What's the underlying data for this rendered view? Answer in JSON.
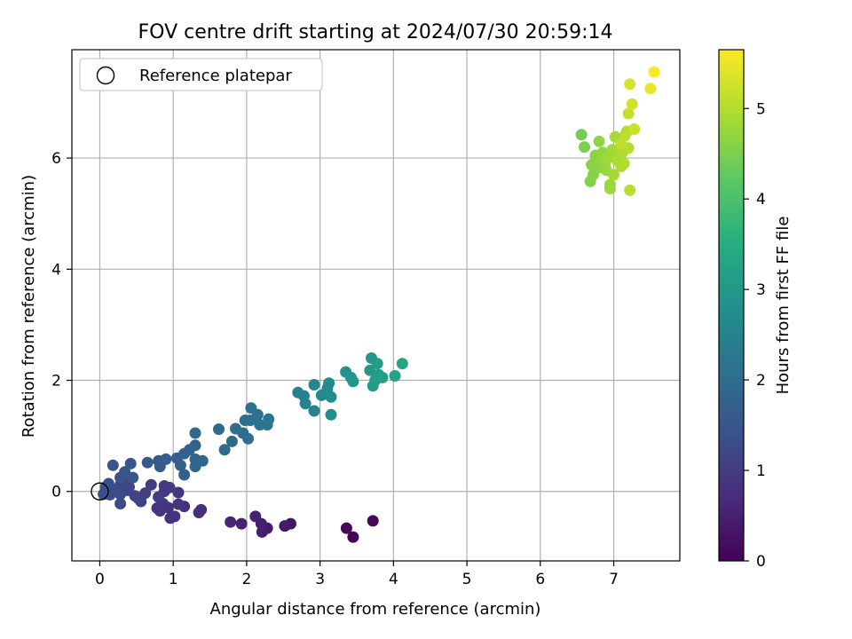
{
  "chart_data": {
    "type": "scatter",
    "title": "FOV centre drift starting at 2024/07/30 20:59:14",
    "xlabel": "Angular distance from reference (arcmin)",
    "ylabel": "Rotation from reference (arcmin)",
    "xlim": [
      -0.38,
      7.9
    ],
    "ylim": [
      -1.25,
      7.95
    ],
    "xticks": [
      0,
      1,
      2,
      3,
      4,
      5,
      6,
      7
    ],
    "yticks": [
      0,
      2,
      4,
      6
    ],
    "grid": true,
    "legend": {
      "placement": "upper-left",
      "entries": [
        "Reference platepar"
      ]
    },
    "reference_point": {
      "x": 0,
      "y": 0
    },
    "colorbar": {
      "label": "Hours from first FF file",
      "colormap": "viridis",
      "range": [
        0,
        5.65
      ],
      "ticks": [
        0,
        1,
        2,
        3,
        4,
        5
      ]
    },
    "series": [
      {
        "points": [
          [
            3.45,
            -0.82,
            0.05
          ],
          [
            3.36,
            -0.66,
            0.1
          ],
          [
            3.72,
            -0.53,
            0.15
          ],
          [
            2.6,
            -0.58,
            0.35
          ],
          [
            2.52,
            -0.62,
            0.38
          ],
          [
            2.28,
            -0.66,
            0.42
          ],
          [
            2.21,
            -0.73,
            0.45
          ],
          [
            2.2,
            -0.58,
            0.48
          ],
          [
            2.12,
            -0.45,
            0.52
          ],
          [
            1.93,
            -0.58,
            0.55
          ],
          [
            1.78,
            -0.55,
            0.6
          ],
          [
            1.38,
            -0.33,
            0.7
          ],
          [
            1.35,
            -0.38,
            0.72
          ],
          [
            1.15,
            -0.27,
            0.75
          ],
          [
            1.02,
            -0.45,
            0.78
          ],
          [
            0.96,
            -0.48,
            0.8
          ],
          [
            0.93,
            -0.29,
            0.82
          ],
          [
            0.82,
            -0.35,
            0.84
          ],
          [
            1.07,
            -0.23,
            0.86
          ],
          [
            0.86,
            -0.22,
            0.88
          ],
          [
            0.78,
            -0.3,
            0.9
          ],
          [
            1.07,
            -0.02,
            0.92
          ],
          [
            0.88,
            0.0,
            0.94
          ],
          [
            0.95,
            0.07,
            0.96
          ],
          [
            0.88,
            0.1,
            0.98
          ],
          [
            0.8,
            -0.1,
            1.0
          ],
          [
            0.7,
            0.12,
            1.02
          ],
          [
            0.62,
            -0.03,
            1.05
          ],
          [
            0.56,
            -0.18,
            1.08
          ],
          [
            0.52,
            -0.12,
            1.1
          ],
          [
            0.48,
            -0.08,
            1.12
          ],
          [
            0.38,
            0.02,
            1.15
          ],
          [
            0.4,
            0.08,
            1.18
          ],
          [
            0.35,
            0.22,
            1.2
          ],
          [
            0.28,
            0.12,
            1.22
          ],
          [
            0.28,
            -0.05,
            1.25
          ],
          [
            0.28,
            -0.22,
            1.28
          ],
          [
            0.2,
            0.03,
            1.3
          ],
          [
            0.14,
            -0.06,
            1.32
          ],
          [
            0.12,
            0.14,
            1.35
          ],
          [
            0.05,
            -0.05,
            1.38
          ],
          [
            0.08,
            0.08,
            1.4
          ],
          [
            0.18,
            0.47,
            1.42
          ],
          [
            0.28,
            0.25,
            1.45
          ],
          [
            0.42,
            0.5,
            1.48
          ],
          [
            0.34,
            0.35,
            1.5
          ],
          [
            0.45,
            0.25,
            1.52
          ],
          [
            0.65,
            0.52,
            1.55
          ],
          [
            0.8,
            0.55,
            1.58
          ],
          [
            0.82,
            0.45,
            1.6
          ],
          [
            0.9,
            0.58,
            1.62
          ],
          [
            1.05,
            0.6,
            1.65
          ],
          [
            1.1,
            0.47,
            1.68
          ],
          [
            1.15,
            0.68,
            1.7
          ],
          [
            1.15,
            0.3,
            1.72
          ],
          [
            1.22,
            0.75,
            1.75
          ],
          [
            1.3,
            0.83,
            1.78
          ],
          [
            1.3,
            0.45,
            1.8
          ],
          [
            1.3,
            0.58,
            1.82
          ],
          [
            1.4,
            0.55,
            1.85
          ],
          [
            1.3,
            1.05,
            1.88
          ],
          [
            1.62,
            1.12,
            1.9
          ],
          [
            1.7,
            0.75,
            1.92
          ],
          [
            1.8,
            0.9,
            1.95
          ],
          [
            1.85,
            1.13,
            1.98
          ],
          [
            1.95,
            1.05,
            2.0
          ],
          [
            2.02,
            0.95,
            2.02
          ],
          [
            2.05,
            1.28,
            2.05
          ],
          [
            1.98,
            1.28,
            2.08
          ],
          [
            2.06,
            1.5,
            2.1
          ],
          [
            2.15,
            1.38,
            2.12
          ],
          [
            2.18,
            1.2,
            2.15
          ],
          [
            2.28,
            1.2,
            2.18
          ],
          [
            2.3,
            1.3,
            2.2
          ],
          [
            2.7,
            1.78,
            2.4
          ],
          [
            2.78,
            1.72,
            2.45
          ],
          [
            2.8,
            1.58,
            2.5
          ],
          [
            2.92,
            1.45,
            2.55
          ],
          [
            2.92,
            1.92,
            2.6
          ],
          [
            3.02,
            1.73,
            2.65
          ],
          [
            3.1,
            1.85,
            2.7
          ],
          [
            3.12,
            1.95,
            2.72
          ],
          [
            3.15,
            1.7,
            2.75
          ],
          [
            3.15,
            1.38,
            2.78
          ],
          [
            3.35,
            2.15,
            2.85
          ],
          [
            3.42,
            2.05,
            2.9
          ],
          [
            3.45,
            1.98,
            2.95
          ],
          [
            3.7,
            2.4,
            3.0
          ],
          [
            3.68,
            2.18,
            3.05
          ],
          [
            3.72,
            1.9,
            3.08
          ],
          [
            3.75,
            2.0,
            3.1
          ],
          [
            3.78,
            2.3,
            3.12
          ],
          [
            3.8,
            2.1,
            3.15
          ],
          [
            3.85,
            2.05,
            3.18
          ],
          [
            4.02,
            2.08,
            3.25
          ],
          [
            4.12,
            2.3,
            3.3
          ],
          [
            6.56,
            6.42,
            4.4
          ],
          [
            6.6,
            6.2,
            4.5
          ],
          [
            6.68,
            5.58,
            4.55
          ],
          [
            6.72,
            5.7,
            4.58
          ],
          [
            6.7,
            5.88,
            4.6
          ],
          [
            6.75,
            6.05,
            4.62
          ],
          [
            6.78,
            5.82,
            4.65
          ],
          [
            6.8,
            6.3,
            4.68
          ],
          [
            6.82,
            5.95,
            4.7
          ],
          [
            6.85,
            6.1,
            4.72
          ],
          [
            6.88,
            5.9,
            4.74
          ],
          [
            6.9,
            5.78,
            4.76
          ],
          [
            6.95,
            5.45,
            4.78
          ],
          [
            6.95,
            5.52,
            4.8
          ],
          [
            6.92,
            6.0,
            4.82
          ],
          [
            6.98,
            6.15,
            4.84
          ],
          [
            7.0,
            5.7,
            4.86
          ],
          [
            7.02,
            6.38,
            4.88
          ],
          [
            7.05,
            5.95,
            4.9
          ],
          [
            7.08,
            6.05,
            4.92
          ],
          [
            7.1,
            5.85,
            4.94
          ],
          [
            7.12,
            6.1,
            4.96
          ],
          [
            7.14,
            5.9,
            4.98
          ],
          [
            7.18,
            6.48,
            5.0
          ],
          [
            7.2,
            6.18,
            5.02
          ],
          [
            7.22,
            5.42,
            5.05
          ],
          [
            7.15,
            6.4,
            5.08
          ],
          [
            7.1,
            6.25,
            5.1
          ],
          [
            7.2,
            6.8,
            5.15
          ],
          [
            7.28,
            6.52,
            5.2
          ],
          [
            7.25,
            6.97,
            5.25
          ],
          [
            7.22,
            7.33,
            5.35
          ],
          [
            7.5,
            7.25,
            5.5
          ],
          [
            7.55,
            7.55,
            5.62
          ]
        ]
      }
    ]
  }
}
